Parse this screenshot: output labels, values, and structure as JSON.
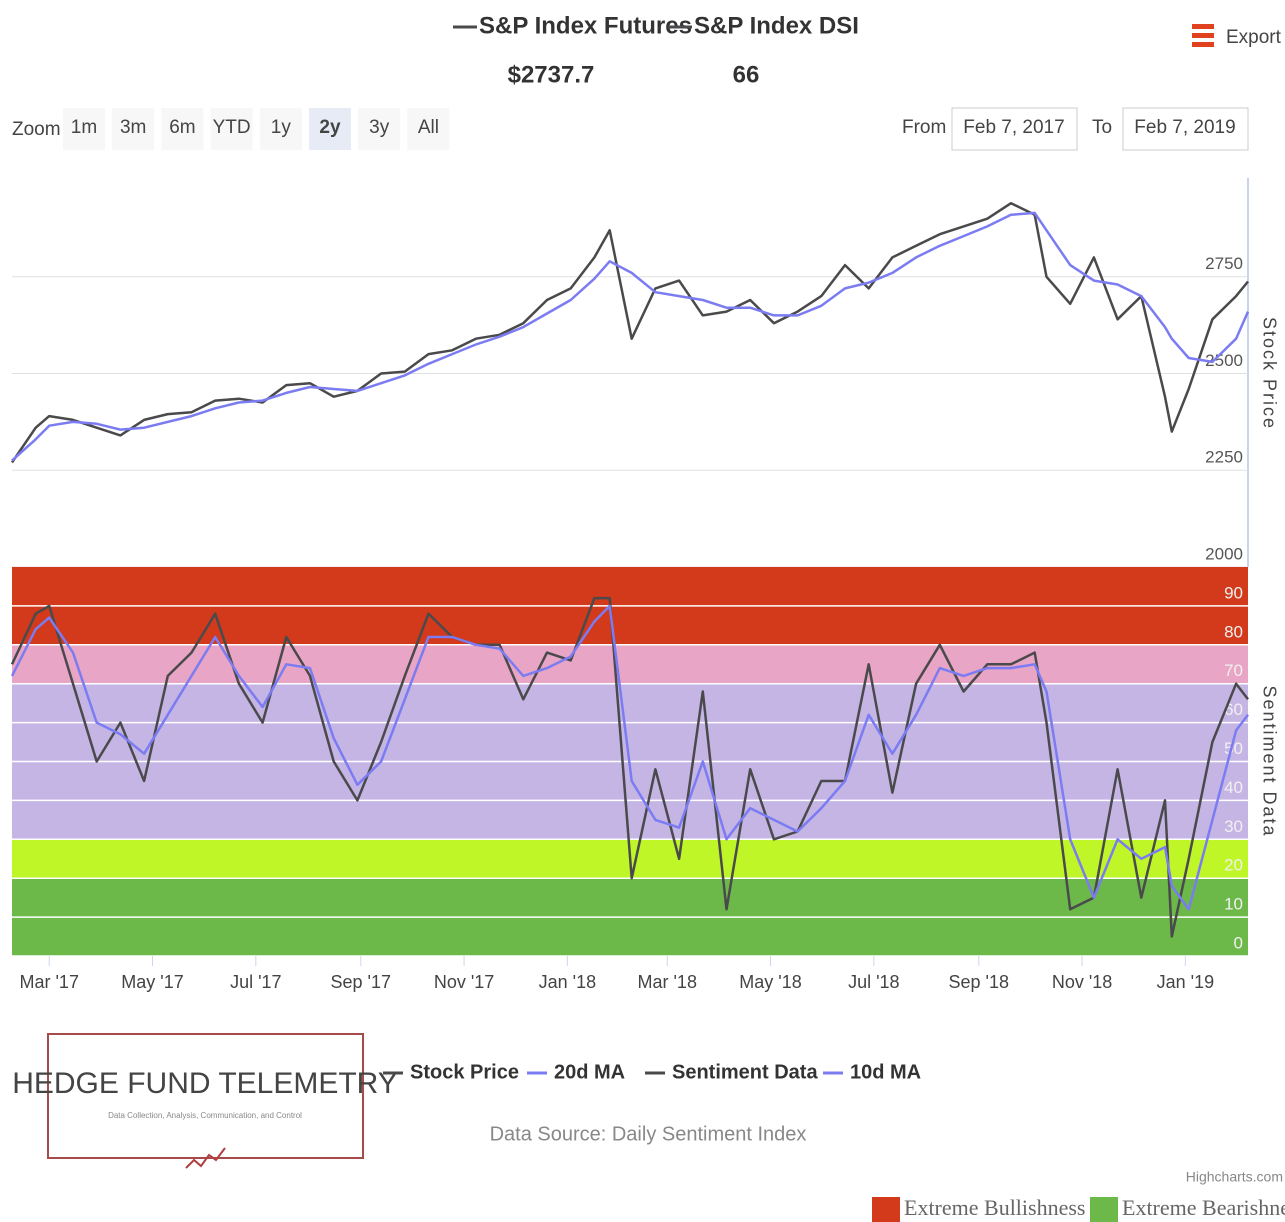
{
  "header": {
    "items": [
      {
        "name": "S&P Index Futures",
        "value": "$2737.7"
      },
      {
        "name": "S&P Index DSI",
        "value": "66"
      }
    ],
    "export": "Export"
  },
  "toolbar": {
    "zoom": "Zoom",
    "buttons": [
      "1m",
      "3m",
      "6m",
      "YTD",
      "1y",
      "2y",
      "3y",
      "All"
    ],
    "selected": "2y",
    "from_label": "From",
    "from": "Feb 7, 2017",
    "to_label": "To",
    "to": "Feb 7, 2019"
  },
  "chart_data": [
    {
      "type": "line",
      "ylabel": "Stock Price",
      "x": [
        "2017-02-07",
        "2017-02-21",
        "2017-03-01",
        "2017-03-15",
        "2017-03-29",
        "2017-04-12",
        "2017-04-26",
        "2017-05-10",
        "2017-05-24",
        "2017-06-07",
        "2017-06-21",
        "2017-07-05",
        "2017-07-19",
        "2017-08-02",
        "2017-08-16",
        "2017-08-30",
        "2017-09-13",
        "2017-09-27",
        "2017-10-11",
        "2017-10-25",
        "2017-11-08",
        "2017-11-22",
        "2017-12-06",
        "2017-12-20",
        "2018-01-03",
        "2018-01-17",
        "2018-01-26",
        "2018-02-08",
        "2018-02-22",
        "2018-03-08",
        "2018-03-22",
        "2018-04-05",
        "2018-04-19",
        "2018-05-03",
        "2018-05-17",
        "2018-05-31",
        "2018-06-14",
        "2018-06-28",
        "2018-07-12",
        "2018-07-26",
        "2018-08-09",
        "2018-08-23",
        "2018-09-06",
        "2018-09-20",
        "2018-10-04",
        "2018-10-11",
        "2018-10-25",
        "2018-11-08",
        "2018-11-22",
        "2018-12-06",
        "2018-12-20",
        "2018-12-24",
        "2019-01-03",
        "2019-01-17",
        "2019-01-31",
        "2019-02-07"
      ],
      "xlim": [
        "2017-02-07",
        "2019-02-07"
      ],
      "ylim": [
        2000,
        3000
      ],
      "yticks": [
        2000,
        2250,
        2500,
        2750
      ],
      "grid": true,
      "series": [
        {
          "name": "Stock Price",
          "color": "#4a4a4c",
          "values": [
            2270,
            2360,
            2390,
            2380,
            2360,
            2340,
            2380,
            2395,
            2400,
            2430,
            2435,
            2425,
            2470,
            2475,
            2440,
            2455,
            2500,
            2505,
            2550,
            2560,
            2590,
            2600,
            2630,
            2690,
            2720,
            2800,
            2870,
            2590,
            2720,
            2740,
            2650,
            2660,
            2690,
            2630,
            2660,
            2700,
            2780,
            2720,
            2800,
            2830,
            2860,
            2880,
            2900,
            2940,
            2910,
            2750,
            2680,
            2800,
            2640,
            2700,
            2440,
            2350,
            2460,
            2640,
            2700,
            2737.7
          ]
        },
        {
          "name": "20d MA",
          "color": "#7b7cf2",
          "values": [
            2275,
            2330,
            2365,
            2375,
            2370,
            2355,
            2360,
            2375,
            2390,
            2410,
            2425,
            2430,
            2450,
            2465,
            2460,
            2455,
            2475,
            2495,
            2525,
            2550,
            2575,
            2595,
            2620,
            2655,
            2690,
            2745,
            2790,
            2760,
            2710,
            2700,
            2690,
            2670,
            2670,
            2650,
            2650,
            2675,
            2720,
            2735,
            2760,
            2800,
            2830,
            2855,
            2880,
            2910,
            2915,
            2870,
            2780,
            2740,
            2730,
            2700,
            2620,
            2590,
            2540,
            2530,
            2590,
            2660
          ]
        }
      ]
    },
    {
      "type": "line",
      "ylabel": "Sentiment Data",
      "x": [
        "2017-02-07",
        "2017-02-21",
        "2017-03-01",
        "2017-03-15",
        "2017-03-29",
        "2017-04-12",
        "2017-04-26",
        "2017-05-10",
        "2017-05-24",
        "2017-06-07",
        "2017-06-21",
        "2017-07-05",
        "2017-07-19",
        "2017-08-02",
        "2017-08-16",
        "2017-08-30",
        "2017-09-13",
        "2017-09-27",
        "2017-10-11",
        "2017-10-25",
        "2017-11-08",
        "2017-11-22",
        "2017-12-06",
        "2017-12-20",
        "2018-01-03",
        "2018-01-17",
        "2018-01-26",
        "2018-02-08",
        "2018-02-22",
        "2018-03-08",
        "2018-03-22",
        "2018-04-05",
        "2018-04-19",
        "2018-05-03",
        "2018-05-17",
        "2018-05-31",
        "2018-06-14",
        "2018-06-28",
        "2018-07-12",
        "2018-07-26",
        "2018-08-09",
        "2018-08-23",
        "2018-09-06",
        "2018-09-20",
        "2018-10-04",
        "2018-10-11",
        "2018-10-25",
        "2018-11-08",
        "2018-11-22",
        "2018-12-06",
        "2018-12-20",
        "2018-12-24",
        "2019-01-03",
        "2019-01-17",
        "2019-01-31",
        "2019-02-07"
      ],
      "xlim": [
        "2017-02-07",
        "2019-02-07"
      ],
      "xticks": [
        {
          "value": "2017-03-01",
          "label": "Mar '17"
        },
        {
          "value": "2017-05-01",
          "label": "May '17"
        },
        {
          "value": "2017-07-01",
          "label": "Jul '17"
        },
        {
          "value": "2017-09-01",
          "label": "Sep '17"
        },
        {
          "value": "2017-11-01",
          "label": "Nov '17"
        },
        {
          "value": "2018-01-01",
          "label": "Jan '18"
        },
        {
          "value": "2018-03-01",
          "label": "Mar '18"
        },
        {
          "value": "2018-05-01",
          "label": "May '18"
        },
        {
          "value": "2018-07-01",
          "label": "Jul '18"
        },
        {
          "value": "2018-09-01",
          "label": "Sep '18"
        },
        {
          "value": "2018-11-01",
          "label": "Nov '18"
        },
        {
          "value": "2019-01-01",
          "label": "Jan '19"
        }
      ],
      "ylim": [
        0,
        100
      ],
      "yticks": [
        0,
        10,
        20,
        30,
        40,
        50,
        60,
        70,
        80,
        90
      ],
      "grid": true,
      "bands": [
        {
          "from": 80,
          "to": 100,
          "color": "#d3391b"
        },
        {
          "from": 70,
          "to": 80,
          "color": "#e9a5c5"
        },
        {
          "from": 30,
          "to": 70,
          "color": "#c5b5e5"
        },
        {
          "from": 20,
          "to": 30,
          "color": "#bff628"
        },
        {
          "from": 0,
          "to": 20,
          "color": "#6cb849"
        }
      ],
      "series": [
        {
          "name": "Sentiment Data",
          "color": "#4a4a4c",
          "values": [
            75,
            88,
            90,
            70,
            50,
            60,
            45,
            72,
            78,
            88,
            70,
            60,
            82,
            72,
            50,
            40,
            55,
            72,
            88,
            82,
            80,
            80,
            66,
            78,
            76,
            92,
            92,
            20,
            48,
            25,
            68,
            12,
            48,
            30,
            32,
            45,
            45,
            75,
            42,
            70,
            80,
            68,
            75,
            75,
            78,
            60,
            12,
            15,
            48,
            15,
            40,
            5,
            25,
            55,
            70,
            66
          ]
        },
        {
          "name": "10d MA",
          "color": "#7b7cf2",
          "values": [
            72,
            84,
            87,
            78,
            60,
            57,
            52,
            62,
            72,
            82,
            72,
            64,
            75,
            74,
            56,
            44,
            50,
            66,
            82,
            82,
            80,
            79,
            72,
            74,
            77,
            86,
            90,
            45,
            35,
            33,
            50,
            30,
            38,
            35,
            32,
            38,
            45,
            62,
            52,
            62,
            74,
            72,
            74,
            74,
            75,
            68,
            30,
            15,
            30,
            25,
            28,
            18,
            12,
            35,
            58,
            62
          ]
        }
      ]
    }
  ],
  "logo": {
    "title": "HEDGE FUND TELEMETRY",
    "subtitle": "Data Collection, Analysis, Communication, and Control"
  },
  "source": "Data Source: Daily Sentiment Index",
  "credits": "Highcharts.com",
  "band_legend": [
    {
      "name": "Extreme Bullishness",
      "color": "#d3391b"
    },
    {
      "name": "Extreme Bearishness",
      "color": "#6cb849"
    }
  ]
}
